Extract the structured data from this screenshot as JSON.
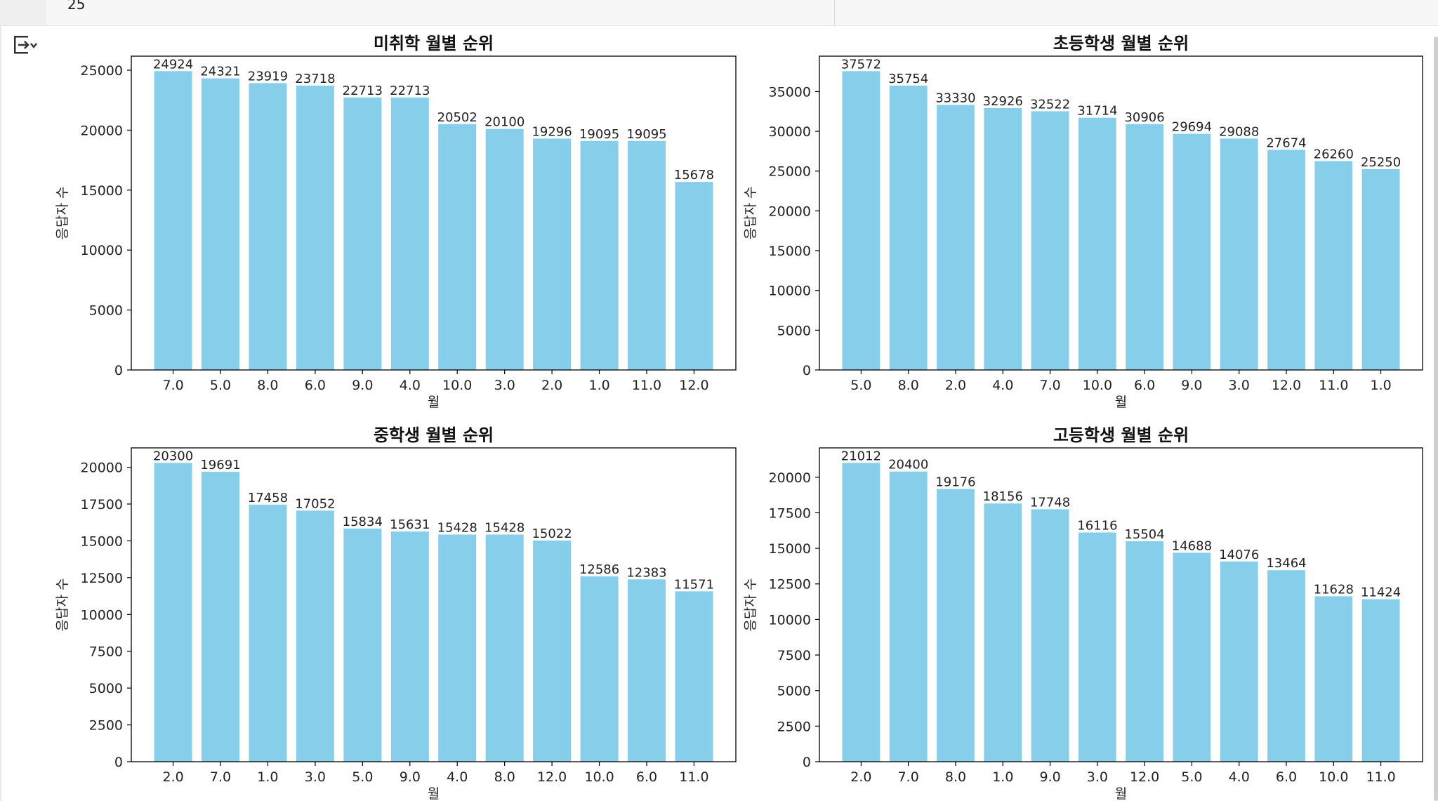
{
  "notebook": {
    "cell_count_text": "25"
  },
  "style": {
    "bar_color": "#87ceeb",
    "axis_color": "#000000"
  },
  "chart_data": [
    {
      "type": "bar",
      "title": "미취학 월별 순위",
      "xlabel": "월",
      "ylabel": "응답자 수",
      "categories": [
        "7.0",
        "5.0",
        "8.0",
        "6.0",
        "9.0",
        "4.0",
        "10.0",
        "3.0",
        "2.0",
        "1.0",
        "11.0",
        "12.0"
      ],
      "values": [
        24924,
        24321,
        23919,
        23718,
        22713,
        22713,
        20502,
        20100,
        19296,
        19095,
        19095,
        15678
      ],
      "yticks": [
        0,
        5000,
        10000,
        15000,
        20000,
        25000
      ],
      "ylim": [
        0,
        26170
      ]
    },
    {
      "type": "bar",
      "title": "초등학생 월별 순위",
      "xlabel": "월",
      "ylabel": "응답자 수",
      "categories": [
        "5.0",
        "8.0",
        "2.0",
        "4.0",
        "7.0",
        "10.0",
        "6.0",
        "9.0",
        "3.0",
        "12.0",
        "11.0",
        "1.0"
      ],
      "values": [
        37572,
        35754,
        33330,
        32926,
        32522,
        31714,
        30906,
        29694,
        29088,
        27674,
        26260,
        25250
      ],
      "yticks": [
        0,
        5000,
        10000,
        15000,
        20000,
        25000,
        30000,
        35000
      ],
      "ylim": [
        0,
        39451
      ]
    },
    {
      "type": "bar",
      "title": "중학생 월별 순위",
      "xlabel": "월",
      "ylabel": "응답자 수",
      "categories": [
        "2.0",
        "7.0",
        "1.0",
        "3.0",
        "5.0",
        "9.0",
        "4.0",
        "8.0",
        "12.0",
        "10.0",
        "6.0",
        "11.0"
      ],
      "values": [
        20300,
        19691,
        17458,
        17052,
        15834,
        15631,
        15428,
        15428,
        15022,
        12586,
        12383,
        11571
      ],
      "yticks": [
        0,
        2500,
        5000,
        7500,
        10000,
        12500,
        15000,
        17500,
        20000
      ],
      "ylim": [
        0,
        21315
      ]
    },
    {
      "type": "bar",
      "title": "고등학생 월별 순위",
      "xlabel": "월",
      "ylabel": "응답자 수",
      "categories": [
        "2.0",
        "7.0",
        "8.0",
        "1.0",
        "9.0",
        "3.0",
        "12.0",
        "5.0",
        "4.0",
        "6.0",
        "10.0",
        "11.0"
      ],
      "values": [
        21012,
        20400,
        19176,
        18156,
        17748,
        16116,
        15504,
        14688,
        14076,
        13464,
        11628,
        11424
      ],
      "yticks": [
        0,
        2500,
        5000,
        7500,
        10000,
        12500,
        15000,
        17500,
        20000
      ],
      "ylim": [
        0,
        22063
      ]
    }
  ]
}
